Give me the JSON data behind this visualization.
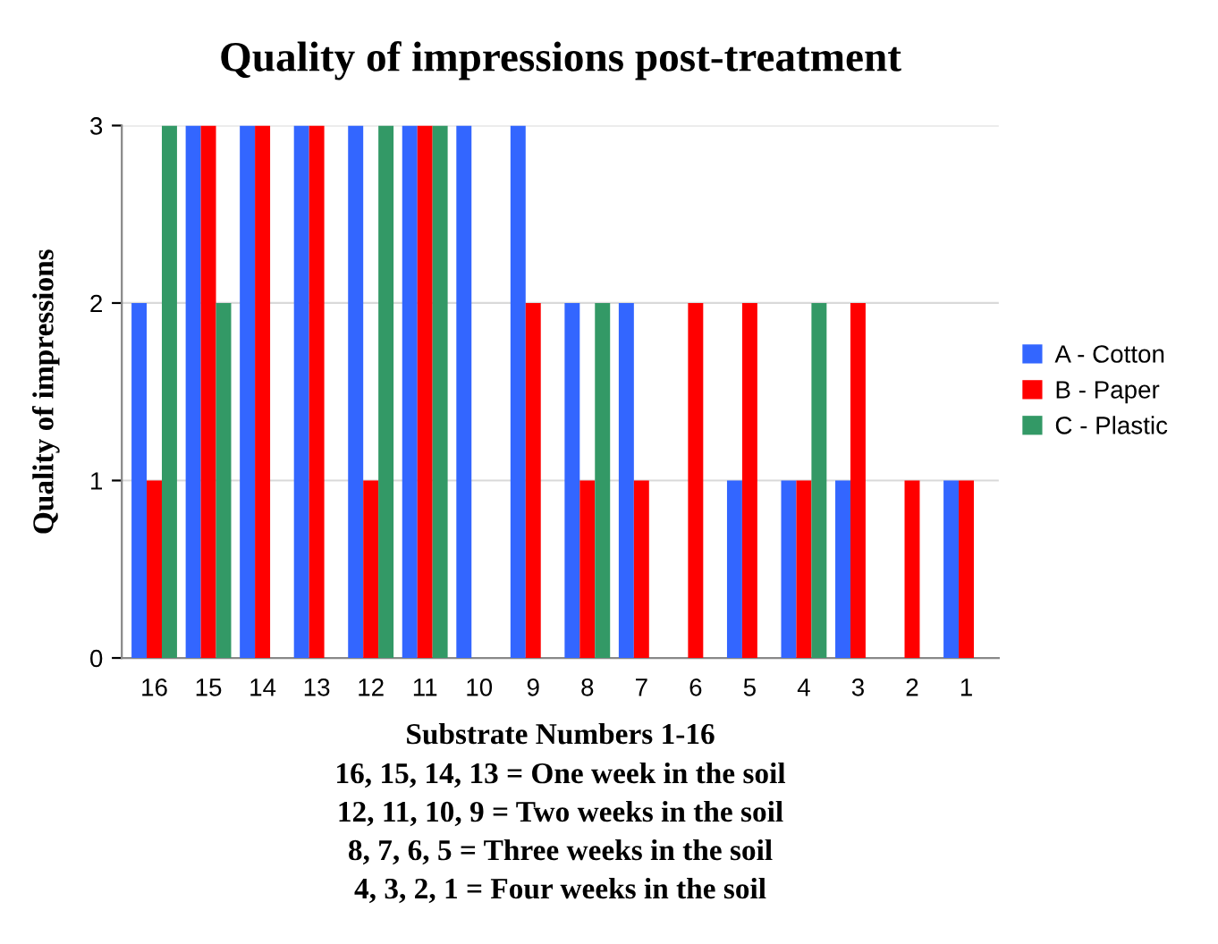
{
  "chart_data": {
    "type": "bar",
    "title": "Quality of impressions post-treatment",
    "ylabel": "Quality of impressions",
    "xlabel": "Substrate Numbers 1-16",
    "annotations": [
      "16, 15, 14, 13 = One week in the soil",
      "12, 11, 10, 9 = Two weeks in the soil",
      "8, 7, 6, 5 = Three weeks in the soil",
      "4, 3, 2, 1 = Four weeks in the soil"
    ],
    "categories": [
      "16",
      "15",
      "14",
      "13",
      "12",
      "11",
      "10",
      "9",
      "8",
      "7",
      "6",
      "5",
      "4",
      "3",
      "2",
      "1"
    ],
    "series": [
      {
        "name": "A - Cotton",
        "color": "#3366ff",
        "values": [
          2,
          3,
          3,
          3,
          3,
          3,
          3,
          3,
          2,
          2,
          0,
          1,
          1,
          1,
          0,
          1
        ]
      },
      {
        "name": "B - Paper",
        "color": "#ff0000",
        "values": [
          1,
          3,
          3,
          3,
          1,
          3,
          0,
          2,
          1,
          1,
          2,
          2,
          1,
          2,
          1,
          1
        ]
      },
      {
        "name": "C - Plastic",
        "color": "#339966",
        "values": [
          3,
          2,
          0,
          0,
          3,
          3,
          0,
          0,
          2,
          0,
          0,
          0,
          2,
          0,
          0,
          0
        ]
      }
    ],
    "ylim": [
      0,
      3
    ],
    "yticks": [
      0,
      1,
      2,
      3
    ],
    "grid": "y",
    "legend": "right"
  }
}
